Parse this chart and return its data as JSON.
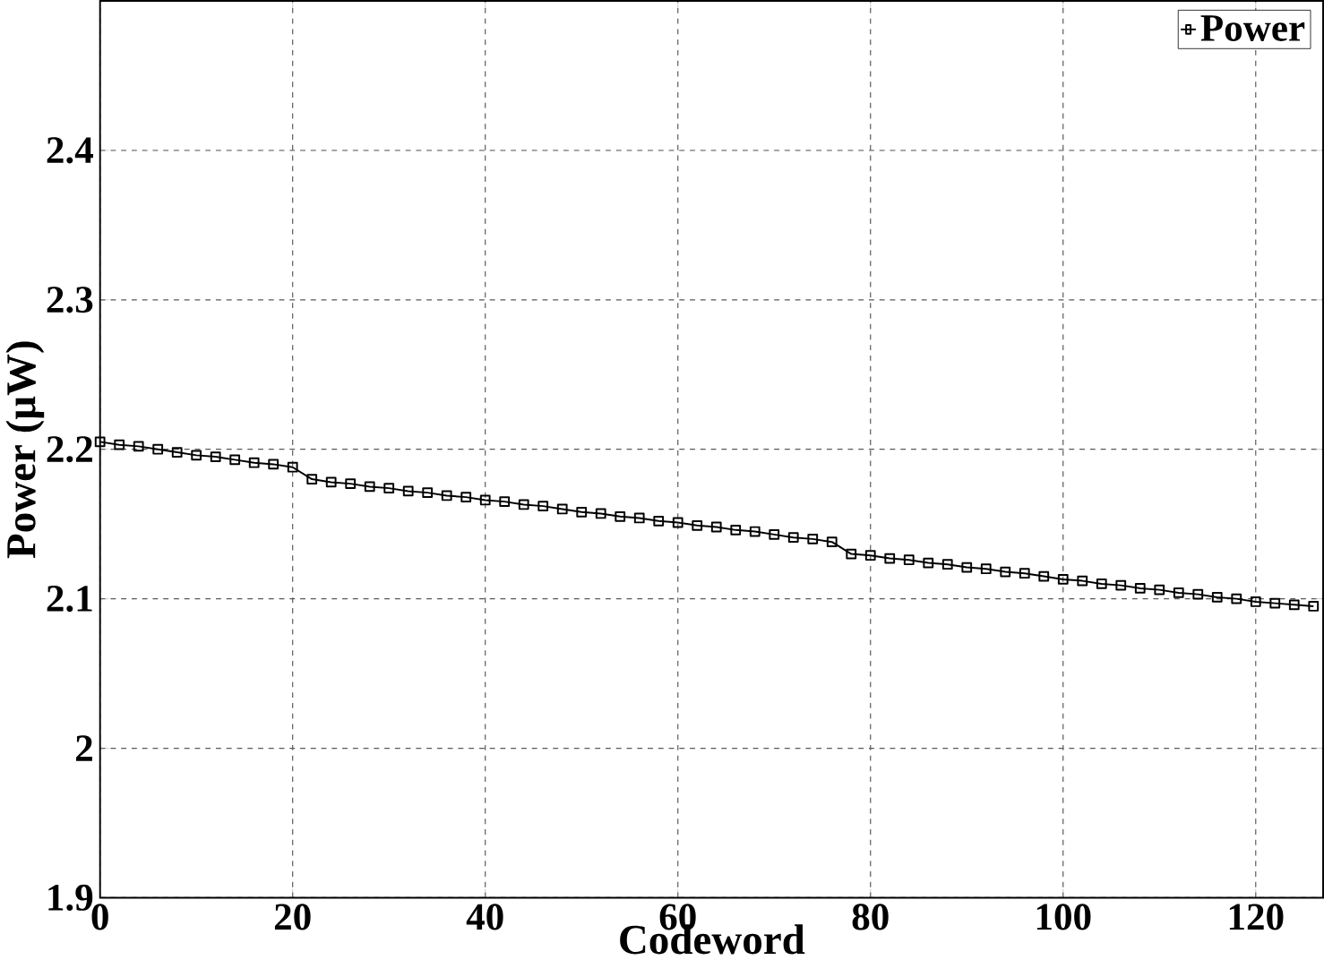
{
  "chart_data": {
    "type": "line",
    "xlabel": "Codeword",
    "ylabel": "Power (μW)",
    "xlim": [
      0,
      127
    ],
    "ylim": [
      1.9,
      2.5
    ],
    "xticks": [
      0,
      20,
      40,
      60,
      80,
      100,
      120
    ],
    "yticks": [
      1.9,
      2,
      2.1,
      2.2,
      2.3,
      2.4
    ],
    "grid": true,
    "legend": "top right",
    "marker": "square",
    "x": [
      0,
      2,
      4,
      6,
      8,
      10,
      12,
      14,
      16,
      18,
      20,
      22,
      24,
      26,
      28,
      30,
      32,
      34,
      36,
      38,
      40,
      42,
      44,
      46,
      48,
      50,
      52,
      54,
      56,
      58,
      60,
      62,
      64,
      66,
      68,
      70,
      72,
      74,
      76,
      78,
      80,
      82,
      84,
      86,
      88,
      90,
      92,
      94,
      96,
      98,
      100,
      102,
      104,
      106,
      108,
      110,
      112,
      114,
      116,
      118,
      120,
      122,
      124,
      126
    ],
    "series": [
      {
        "name": "Power",
        "color": "#000000",
        "values": [
          2.205,
          2.203,
          2.202,
          2.2,
          2.198,
          2.196,
          2.195,
          2.193,
          2.191,
          2.19,
          2.188,
          2.18,
          2.178,
          2.177,
          2.175,
          2.174,
          2.172,
          2.171,
          2.169,
          2.168,
          2.166,
          2.165,
          2.163,
          2.162,
          2.16,
          2.158,
          2.157,
          2.155,
          2.154,
          2.152,
          2.151,
          2.149,
          2.148,
          2.146,
          2.145,
          2.143,
          2.141,
          2.14,
          2.138,
          2.13,
          2.129,
          2.127,
          2.126,
          2.124,
          2.123,
          2.121,
          2.12,
          2.118,
          2.117,
          2.115,
          2.113,
          2.112,
          2.11,
          2.109,
          2.107,
          2.106,
          2.104,
          2.103,
          2.101,
          2.1,
          2.098,
          2.097,
          2.096,
          2.095
        ]
      }
    ]
  }
}
